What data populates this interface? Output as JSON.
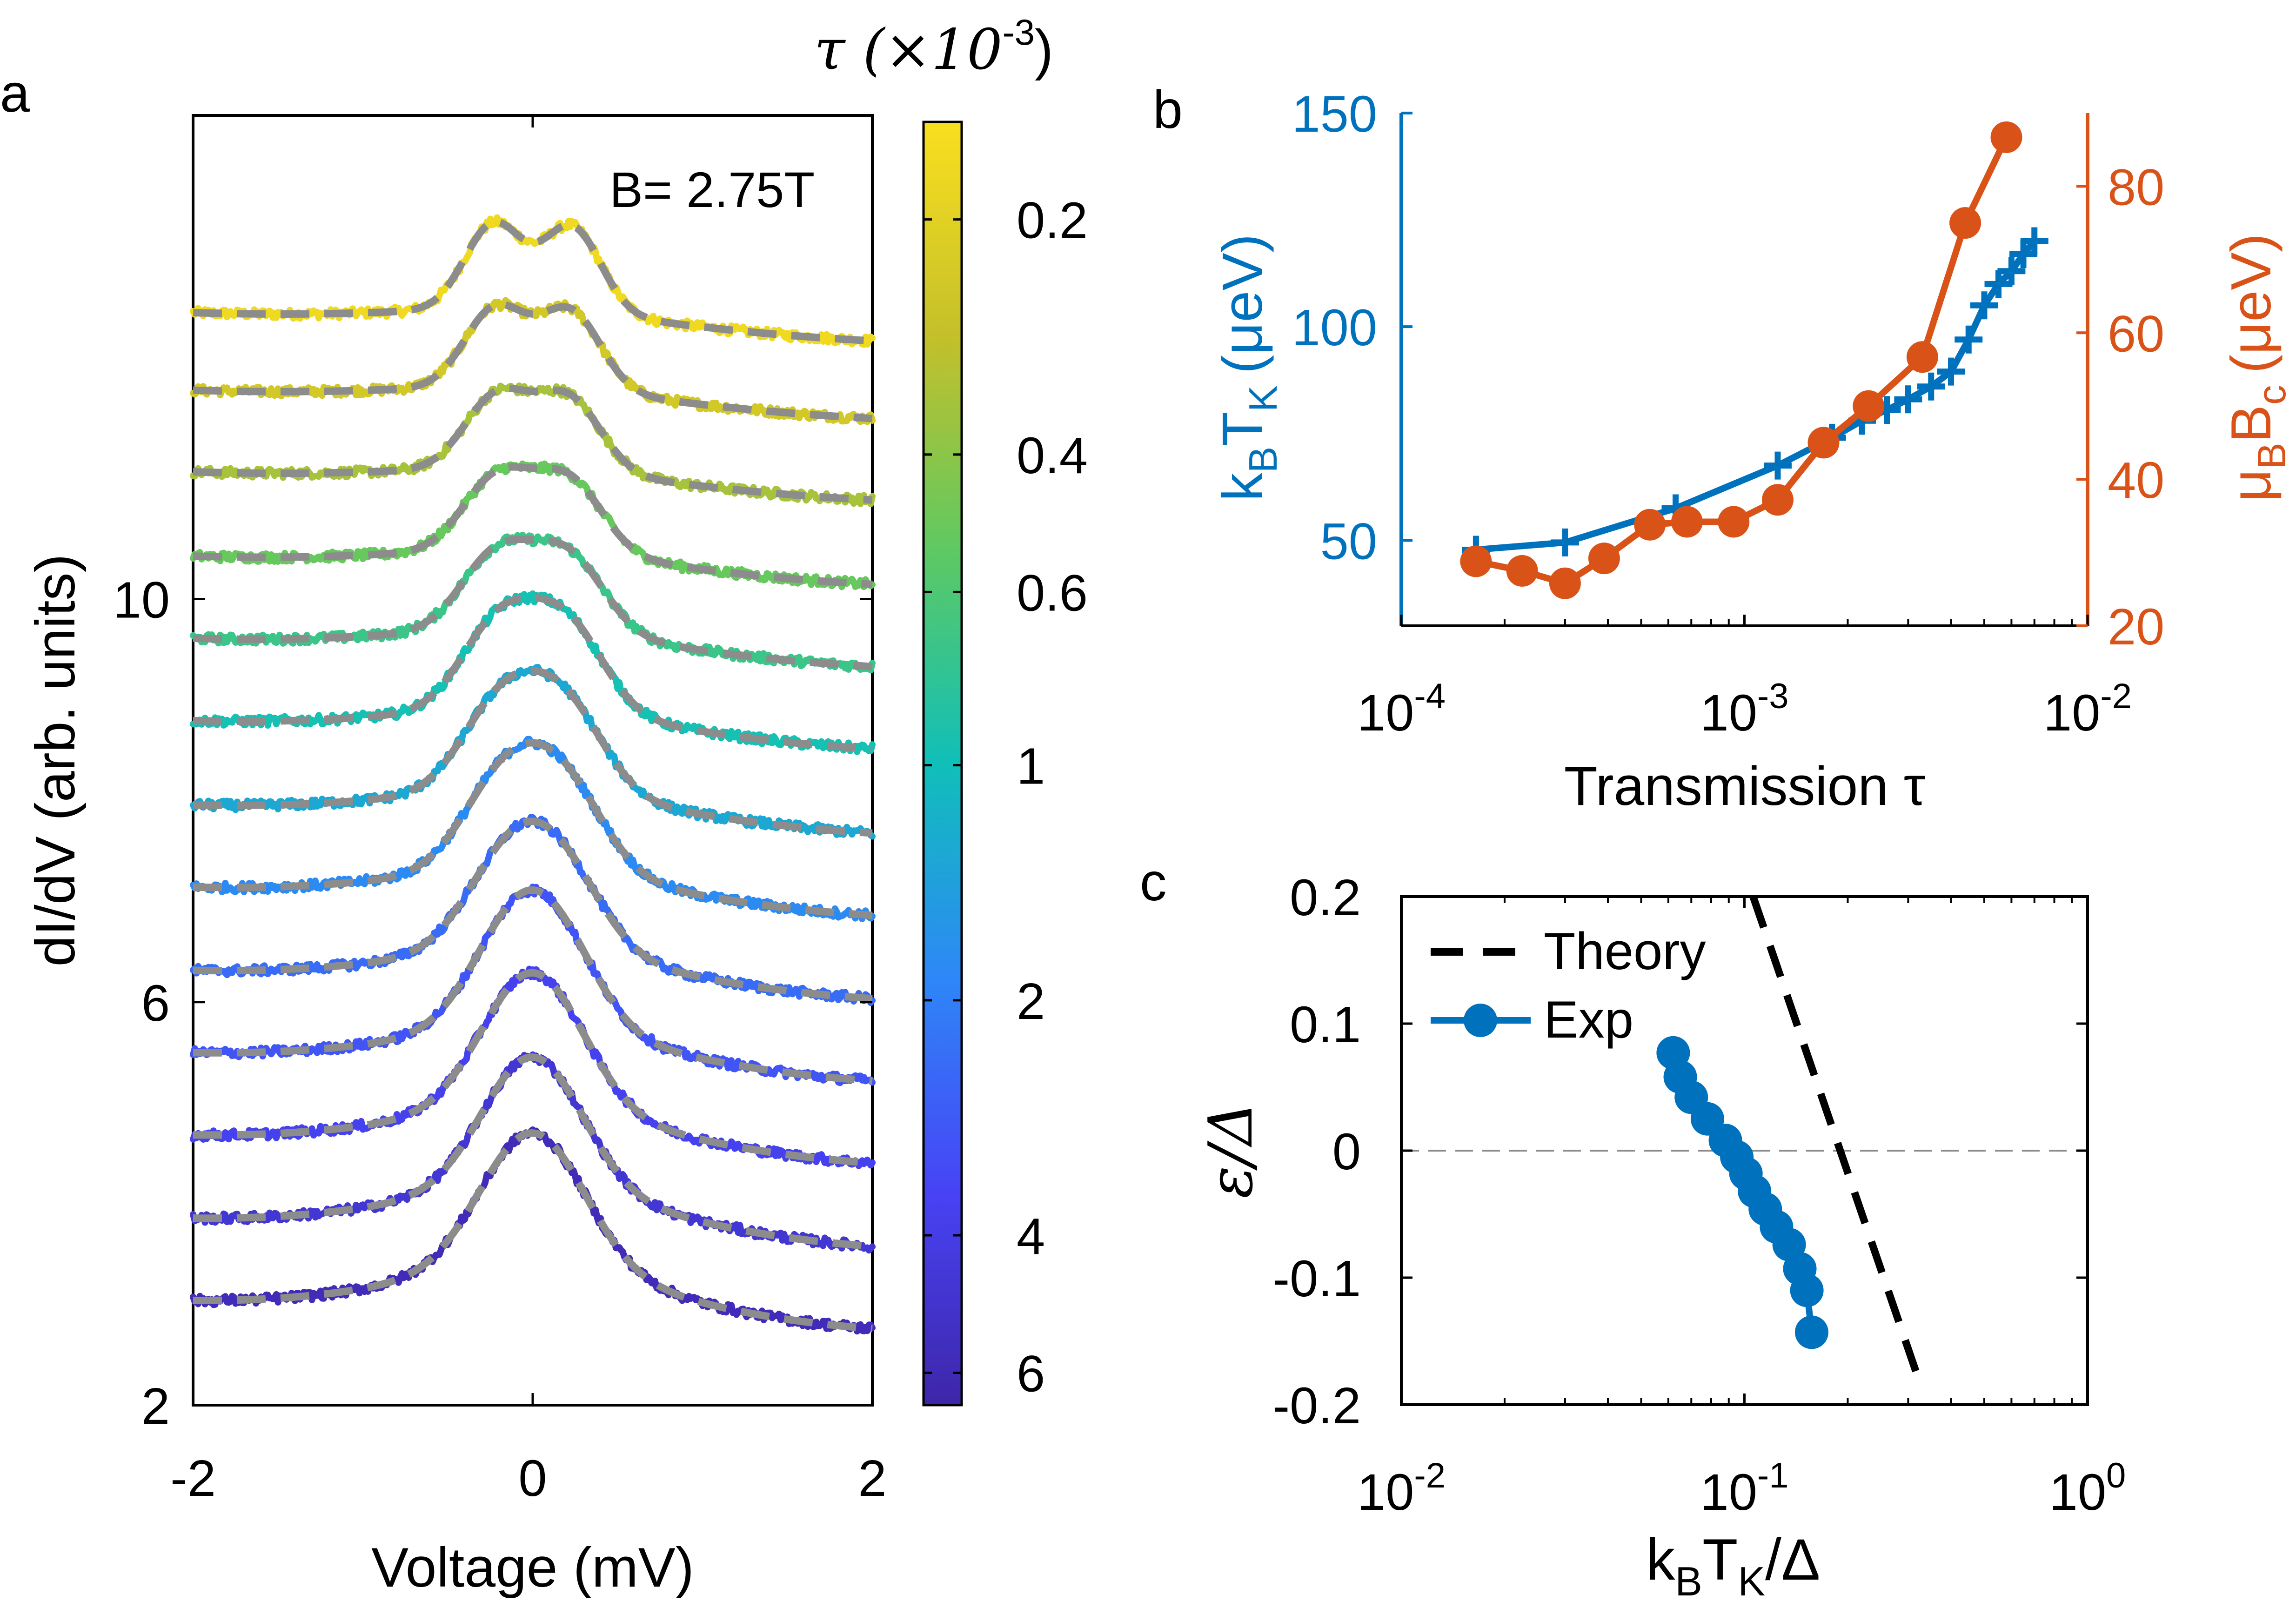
{
  "colors": {
    "blue": "#0072bd",
    "orange": "#d95319",
    "gray": "#8c8c8c",
    "black": "#000000",
    "colormap": [
      "#3e26a8",
      "#4743f5",
      "#2e87f7",
      "#10bfb9",
      "#5ec962",
      "#c4c02a",
      "#fadf1f"
    ]
  },
  "panels": {
    "a": {
      "letter": "a",
      "annotation": "B= 2.75T"
    },
    "b": {
      "letter": "b"
    },
    "c": {
      "letter": "c"
    }
  },
  "colorbar": {
    "title": "τ (×10",
    "title_exp": "-3",
    "title_close": ")",
    "ticks": [
      {
        "value": 0.2,
        "label": "0.2"
      },
      {
        "value": 0.4,
        "label": "0.4"
      },
      {
        "value": 0.6,
        "label": "0.6"
      },
      {
        "value": 1,
        "label": "1"
      },
      {
        "value": 2,
        "label": "2"
      },
      {
        "value": 4,
        "label": "4"
      },
      {
        "value": 6,
        "label": "6"
      }
    ],
    "range": [
      0.15,
      6.6
    ],
    "scale": "log",
    "direction": "reversed"
  },
  "chart_data": [
    {
      "id": "a",
      "type": "line",
      "xlabel": "Voltage (mV)",
      "ylabel": "dI/dV (arb. units)",
      "xlim": [
        -2,
        2
      ],
      "ylim": [
        2,
        14.8
      ],
      "xticks": [
        {
          "value": -2,
          "label": "-2"
        },
        {
          "value": 0,
          "label": "0"
        },
        {
          "value": 2,
          "label": "2"
        }
      ],
      "yticks": [
        {
          "value": 2,
          "label": "2"
        },
        {
          "value": 6,
          "label": "6"
        },
        {
          "value": 10,
          "label": "10"
        }
      ],
      "curves": [
        {
          "tau": 0.17,
          "offset": 12.8,
          "split": 0.23,
          "peak_height": 0.85,
          "peak_width": 0.17,
          "broad": 0.3
        },
        {
          "tau": 0.24,
          "offset": 12.03,
          "split": 0.22,
          "peak_height": 0.78,
          "peak_width": 0.18,
          "broad": 0.3
        },
        {
          "tau": 0.34,
          "offset": 11.22,
          "split": 0.21,
          "peak_height": 0.72,
          "peak_width": 0.19,
          "broad": 0.3
        },
        {
          "tau": 0.5,
          "offset": 10.4,
          "split": 0.21,
          "peak_height": 0.72,
          "peak_width": 0.2,
          "broad": 0.35
        },
        {
          "tau": 0.7,
          "offset": 9.6,
          "split": 0.21,
          "peak_height": 0.75,
          "peak_width": 0.21,
          "broad": 0.4
        },
        {
          "tau": 0.95,
          "offset": 8.8,
          "split": 0.2,
          "peak_height": 0.85,
          "peak_width": 0.22,
          "broad": 0.45
        },
        {
          "tau": 1.3,
          "offset": 7.98,
          "split": 0.19,
          "peak_height": 0.85,
          "peak_width": 0.23,
          "broad": 0.5
        },
        {
          "tau": 1.8,
          "offset": 7.18,
          "split": 0.18,
          "peak_height": 0.85,
          "peak_width": 0.24,
          "broad": 0.55
        },
        {
          "tau": 2.4,
          "offset": 6.37,
          "split": 0.16,
          "peak_height": 0.8,
          "peak_width": 0.25,
          "broad": 0.6
        },
        {
          "tau": 3.0,
          "offset": 5.57,
          "split": 0.13,
          "peak_height": 0.8,
          "peak_width": 0.26,
          "broad": 0.65
        },
        {
          "tau": 3.7,
          "offset": 4.77,
          "split": 0.11,
          "peak_height": 0.75,
          "peak_width": 0.27,
          "broad": 0.7
        },
        {
          "tau": 4.6,
          "offset": 3.96,
          "split": 0.08,
          "peak_height": 0.7,
          "peak_width": 0.28,
          "broad": 0.75
        },
        {
          "tau": 5.8,
          "offset": 3.16,
          "split": 0.05,
          "peak_height": 0.7,
          "peak_width": 0.3,
          "broad": 0.8
        }
      ],
      "x_range_mV": [
        -2,
        2
      ],
      "fit_style": "dashed gray",
      "data_style": "colored markers"
    },
    {
      "id": "b",
      "type": "line",
      "xlabel": "Transmission τ",
      "x_scale": "log",
      "xlim": [
        0.0001,
        0.01
      ],
      "xticks": [
        {
          "value": 0.0001,
          "base": "10",
          "exp": "-4"
        },
        {
          "value": 0.001,
          "base": "10",
          "exp": "-3"
        },
        {
          "value": 0.01,
          "base": "10",
          "exp": "-2"
        }
      ],
      "left_axis": {
        "label_main": "k",
        "label_sub1": "B",
        "label_mid": "T",
        "label_sub2": "K",
        "label_unit": "(μeV)",
        "ylim": [
          30,
          150
        ],
        "yticks": [
          {
            "value": 50,
            "label": "50"
          },
          {
            "value": 100,
            "label": "100"
          },
          {
            "value": 150,
            "label": "150"
          }
        ]
      },
      "right_axis": {
        "label_main": "μ",
        "label_sub1": "B",
        "label_mid": "B",
        "label_sub2": "c",
        "label_unit": "(μeV)",
        "ylim": [
          20,
          90
        ],
        "yticks": [
          {
            "value": 20,
            "label": "20"
          },
          {
            "value": 40,
            "label": "40"
          },
          {
            "value": 60,
            "label": "60"
          },
          {
            "value": 80,
            "label": "80"
          }
        ]
      },
      "series": [
        {
          "axis": "left",
          "marker": "plus",
          "points": [
            [
              0.000165,
              47.8
            ],
            [
              0.0003,
              49.5
            ],
            [
              0.00063,
              57.5
            ],
            [
              0.00125,
              67.5
            ],
            [
              0.0018,
              74
            ],
            [
              0.0022,
              78
            ],
            [
              0.0026,
              80.5
            ],
            [
              0.003,
              83
            ],
            [
              0.0035,
              86
            ],
            [
              0.004,
              89.5
            ],
            [
              0.0045,
              97
            ],
            [
              0.005,
              105
            ],
            [
              0.0055,
              110
            ],
            [
              0.006,
              113
            ],
            [
              0.0065,
              117
            ],
            [
              0.007,
              120
            ]
          ]
        },
        {
          "axis": "right",
          "marker": "circle",
          "points": [
            [
              0.000165,
              28.8
            ],
            [
              0.000225,
              27.5
            ],
            [
              0.0003,
              25.8
            ],
            [
              0.00039,
              29.2
            ],
            [
              0.00053,
              33.8
            ],
            [
              0.00068,
              34.2
            ],
            [
              0.00093,
              34.2
            ],
            [
              0.00125,
              37.2
            ],
            [
              0.0017,
              45
            ],
            [
              0.0023,
              50
            ],
            [
              0.0033,
              56.7
            ],
            [
              0.0044,
              75
            ],
            [
              0.0058,
              86.7
            ]
          ]
        }
      ]
    },
    {
      "id": "c",
      "type": "scatter",
      "xlabel_main": "k",
      "xlabel_sub1": "B",
      "xlabel_mid": "T",
      "xlabel_sub2": "K",
      "xlabel_tail": "/Δ",
      "ylabel": "ε/Δ",
      "x_scale": "log",
      "xlim": [
        0.01,
        1
      ],
      "ylim": [
        -0.2,
        0.2
      ],
      "xticks": [
        {
          "value": 0.01,
          "base": "10",
          "exp": "-2"
        },
        {
          "value": 0.1,
          "base": "10",
          "exp": "-1"
        },
        {
          "value": 1,
          "base": "10",
          "exp": "0"
        }
      ],
      "yticks": [
        {
          "value": 0.2,
          "label": "0.2"
        },
        {
          "value": 0.1,
          "label": "0.1"
        },
        {
          "value": 0,
          "label": "0"
        },
        {
          "value": -0.1,
          "label": "-0.1"
        },
        {
          "value": -0.2,
          "label": "-0.2"
        }
      ],
      "legend": [
        "Theory",
        "Exp"
      ],
      "legend_position": "top-left",
      "zero_line": true,
      "series": [
        {
          "name": "Theory",
          "style": "dashed",
          "points": [
            [
              0.106,
              0.2
            ],
            [
              0.318,
              -0.176
            ]
          ]
        },
        {
          "name": "Exp",
          "style": "line-circle",
          "points": [
            [
              0.062,
              0.077
            ],
            [
              0.065,
              0.058
            ],
            [
              0.07,
              0.042
            ],
            [
              0.078,
              0.025
            ],
            [
              0.088,
              0.008
            ],
            [
              0.095,
              -0.005
            ],
            [
              0.101,
              -0.018
            ],
            [
              0.107,
              -0.032
            ],
            [
              0.115,
              -0.046
            ],
            [
              0.124,
              -0.06
            ],
            [
              0.135,
              -0.074
            ],
            [
              0.145,
              -0.093
            ],
            [
              0.152,
              -0.11
            ],
            [
              0.157,
              -0.143
            ]
          ]
        }
      ]
    }
  ]
}
